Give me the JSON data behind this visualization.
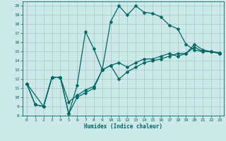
{
  "xlabel": "Humidex (Indice chaleur)",
  "bg_color": "#cce8e8",
  "grid_color": "#aacccc",
  "line_color": "#006666",
  "xlim": [
    -0.5,
    23.5
  ],
  "ylim": [
    8,
    20.5
  ],
  "xticks": [
    0,
    1,
    2,
    3,
    4,
    5,
    6,
    7,
    8,
    9,
    10,
    11,
    12,
    13,
    14,
    15,
    16,
    17,
    18,
    19,
    20,
    21,
    22,
    23
  ],
  "yticks": [
    8,
    9,
    10,
    11,
    12,
    13,
    14,
    15,
    16,
    17,
    18,
    19,
    20
  ],
  "line1_x": [
    0,
    1,
    2,
    3,
    4,
    5,
    6,
    7,
    8,
    9,
    10,
    11,
    12,
    13,
    14,
    15,
    16,
    17,
    18,
    19,
    20,
    21,
    22,
    23
  ],
  "line1_y": [
    11.5,
    9.2,
    9.0,
    12.2,
    12.2,
    8.2,
    11.3,
    17.2,
    15.3,
    13.0,
    18.3,
    20.0,
    19.0,
    20.0,
    19.3,
    19.2,
    18.8,
    17.9,
    17.5,
    15.8,
    15.2,
    15.0,
    15.0,
    14.9
  ],
  "line2_x": [
    0,
    2,
    3,
    4,
    5,
    6,
    7,
    8,
    9,
    10,
    11,
    12,
    13,
    14,
    15,
    16,
    17,
    18,
    19,
    20,
    21,
    22,
    23
  ],
  "line2_y": [
    11.5,
    9.0,
    12.2,
    12.2,
    9.5,
    10.2,
    10.8,
    11.2,
    13.0,
    13.5,
    13.8,
    13.3,
    13.8,
    14.2,
    14.2,
    14.5,
    14.8,
    14.5,
    14.8,
    15.5,
    15.0,
    15.0,
    14.8
  ],
  "line3_x": [
    0,
    1,
    2,
    3,
    4,
    5,
    6,
    7,
    8,
    9,
    10,
    11,
    12,
    13,
    14,
    15,
    16,
    17,
    18,
    19,
    20,
    21,
    22,
    23
  ],
  "line3_y": [
    11.5,
    9.2,
    9.0,
    12.2,
    12.2,
    8.2,
    10.0,
    10.5,
    11.0,
    13.0,
    13.5,
    12.0,
    12.8,
    13.3,
    13.8,
    14.0,
    14.2,
    14.5,
    14.8,
    14.8,
    15.8,
    15.2,
    15.0,
    14.8
  ]
}
